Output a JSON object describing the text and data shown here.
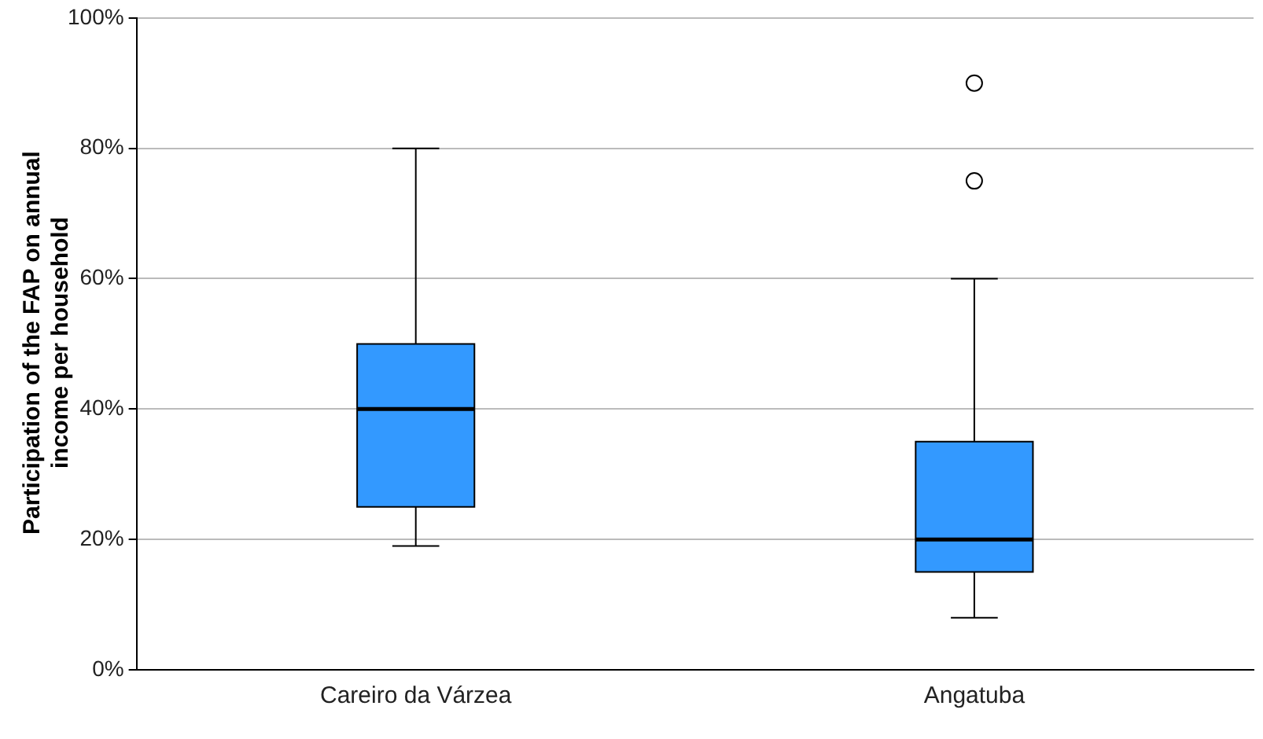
{
  "chart_data": {
    "type": "box",
    "ylabel": "Participation of the FAP on annual income per household",
    "categories": [
      "Careiro da Várzea",
      "Angatuba"
    ],
    "color": "#3399ff",
    "boxes": [
      {
        "low": 19,
        "q1": 25,
        "median": 40,
        "q3": 50,
        "high": 80
      },
      {
        "low": 8,
        "q1": 15,
        "median": 20,
        "q3": 35,
        "high": 60,
        "outliers": [
          75,
          90
        ]
      }
    ],
    "ylim": [
      0,
      100
    ],
    "yticks": [
      {
        "value": 0,
        "label": "0%"
      },
      {
        "value": 20,
        "label": "20%"
      },
      {
        "value": 40,
        "label": "40%"
      },
      {
        "value": 60,
        "label": "60%"
      },
      {
        "value": 80,
        "label": "80%"
      },
      {
        "value": 100,
        "label": "100%"
      }
    ],
    "grid": "y"
  }
}
